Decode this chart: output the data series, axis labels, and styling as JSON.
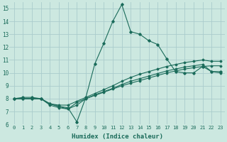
{
  "xlabel": "Humidex (Indice chaleur)",
  "bg_color": "#cce8e0",
  "grid_color": "#aacccc",
  "line_color": "#1a6b5a",
  "xlim": [
    -0.5,
    23.5
  ],
  "ylim": [
    6,
    15.5
  ],
  "xticks": [
    0,
    1,
    2,
    3,
    4,
    5,
    6,
    7,
    8,
    9,
    10,
    11,
    12,
    13,
    14,
    15,
    16,
    17,
    18,
    19,
    20,
    21,
    22,
    23
  ],
  "yticks": [
    6,
    7,
    8,
    9,
    10,
    11,
    12,
    13,
    14,
    15
  ],
  "line1_x": [
    0,
    1,
    2,
    3,
    4,
    5,
    6,
    7,
    8,
    9,
    10,
    11,
    12,
    13,
    14,
    15,
    16,
    17,
    18,
    19,
    20,
    21,
    22,
    23
  ],
  "line1_y": [
    8.0,
    8.1,
    8.1,
    8.0,
    7.6,
    7.4,
    7.3,
    6.2,
    8.1,
    10.7,
    12.3,
    14.0,
    15.3,
    13.2,
    13.0,
    12.5,
    12.2,
    11.1,
    10.1,
    10.0,
    10.0,
    10.5,
    10.1,
    10.1
  ],
  "line2_x": [
    0,
    1,
    2,
    3,
    4,
    5,
    6,
    7,
    8,
    9,
    10,
    11,
    12,
    13,
    14,
    15,
    16,
    17,
    18,
    19,
    20,
    21,
    22,
    23
  ],
  "line2_y": [
    8.0,
    8.0,
    8.0,
    8.0,
    7.6,
    7.5,
    7.5,
    7.8,
    8.1,
    8.4,
    8.7,
    9.0,
    9.35,
    9.65,
    9.9,
    10.1,
    10.3,
    10.5,
    10.65,
    10.8,
    10.9,
    11.0,
    10.9,
    10.9
  ],
  "line3_x": [
    0,
    1,
    2,
    3,
    4,
    5,
    6,
    7,
    8,
    9,
    10,
    11,
    12,
    13,
    14,
    15,
    16,
    17,
    18,
    19,
    20,
    21,
    22,
    23
  ],
  "line3_y": [
    8.0,
    8.0,
    8.0,
    8.0,
    7.6,
    7.4,
    7.2,
    7.5,
    8.0,
    8.3,
    8.55,
    8.8,
    9.1,
    9.35,
    9.55,
    9.75,
    9.95,
    10.15,
    10.3,
    10.45,
    10.55,
    10.65,
    10.1,
    10.0
  ],
  "line4_x": [
    0,
    1,
    2,
    3,
    4,
    5,
    6,
    7,
    8,
    9,
    10,
    11,
    12,
    13,
    14,
    15,
    16,
    17,
    18,
    19,
    20,
    21,
    22,
    23
  ],
  "line4_y": [
    8.0,
    8.0,
    8.0,
    8.0,
    7.5,
    7.3,
    7.2,
    7.7,
    8.0,
    8.25,
    8.5,
    8.75,
    9.0,
    9.2,
    9.4,
    9.6,
    9.8,
    10.0,
    10.15,
    10.3,
    10.4,
    10.5,
    10.55,
    10.55
  ]
}
